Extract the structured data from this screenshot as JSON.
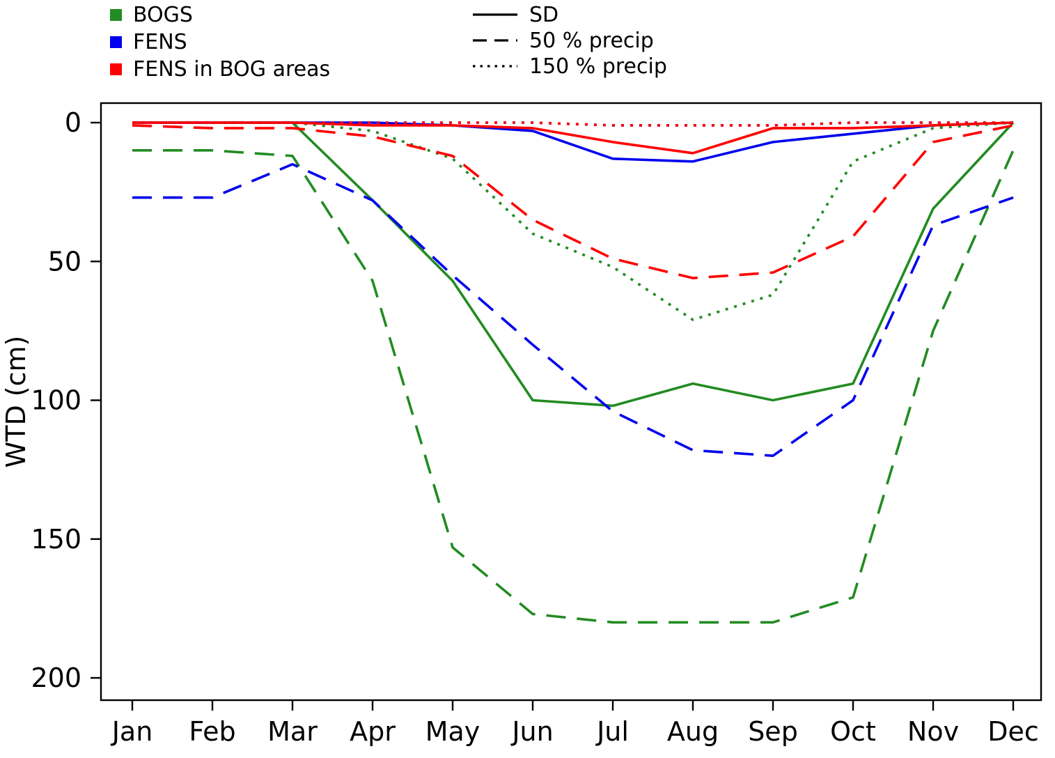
{
  "legend": {
    "colors": [
      {
        "label": "BOGS",
        "color": "#228B22"
      },
      {
        "label": "FENS",
        "color": "#0000EE"
      },
      {
        "label": "FENS in BOG areas",
        "color": "#FF0000"
      }
    ],
    "linetypes": [
      {
        "label": "SD",
        "style": "solid"
      },
      {
        "label": "50 % precip",
        "style": "dashed"
      },
      {
        "label": "150 % precip",
        "style": "dotted"
      }
    ]
  },
  "chart_data": {
    "type": "line",
    "x": [
      "Jan",
      "Feb",
      "Mar",
      "Apr",
      "May",
      "Jun",
      "Jul",
      "Aug",
      "Sep",
      "Oct",
      "Nov",
      "Dec"
    ],
    "ylabel": "WTD (cm)",
    "xlabel": "",
    "yticks": [
      0,
      50,
      100,
      150,
      200
    ],
    "ylim": [
      0,
      210
    ],
    "y_inverted": true,
    "grid": false,
    "legend_position": "top",
    "series": [
      {
        "name": "BOGS 50 % precip",
        "group": "BOGS",
        "color": "#228B22",
        "style": "dashed",
        "values": [
          10,
          10,
          12,
          57,
          153,
          177,
          180,
          180,
          180,
          171,
          75,
          10
        ]
      },
      {
        "name": "BOGS 150 % precip",
        "group": "BOGS",
        "color": "#228B22",
        "style": "dotted",
        "values": [
          0,
          0,
          0,
          3,
          13,
          40,
          52,
          71,
          62,
          14,
          2,
          0
        ]
      },
      {
        "name": "BOGS SD",
        "group": "BOGS",
        "color": "#228B22",
        "style": "solid",
        "values": [
          0,
          0,
          0,
          28,
          57,
          100,
          102,
          94,
          100,
          94,
          31,
          0
        ]
      },
      {
        "name": "FENS 50 % precip",
        "group": "FENS",
        "color": "#0000EE",
        "style": "dashed",
        "values": [
          27,
          27,
          15,
          28,
          55,
          80,
          104,
          118,
          120,
          100,
          37,
          27
        ]
      },
      {
        "name": "FENS 150 % precip",
        "group": "FENS",
        "color": "#0000EE",
        "style": "dotted",
        "values": [
          0,
          0,
          0,
          0,
          0,
          0,
          1,
          1,
          1,
          0,
          0,
          0
        ]
      },
      {
        "name": "FENS SD",
        "group": "FENS",
        "color": "#0000EE",
        "style": "solid",
        "values": [
          0,
          0,
          0,
          0,
          1,
          3,
          13,
          14,
          7,
          4,
          1,
          0
        ]
      },
      {
        "name": "FENS in BOG areas 50 % precip",
        "group": "FENS in BOG areas",
        "color": "#FF0000",
        "style": "dashed",
        "values": [
          1,
          2,
          2,
          5,
          12,
          35,
          49,
          56,
          54,
          41,
          7,
          1
        ]
      },
      {
        "name": "FENS in BOG areas 150 % precip",
        "group": "FENS in BOG areas",
        "color": "#FF0000",
        "style": "dotted",
        "values": [
          0,
          0,
          0,
          0,
          0,
          0,
          1,
          1,
          1,
          0,
          0,
          0
        ]
      },
      {
        "name": "FENS in BOG areas SD",
        "group": "FENS in BOG areas",
        "color": "#FF0000",
        "style": "solid",
        "values": [
          0,
          0,
          0,
          1,
          1,
          2,
          7,
          11,
          2,
          2,
          1,
          0
        ]
      }
    ]
  }
}
